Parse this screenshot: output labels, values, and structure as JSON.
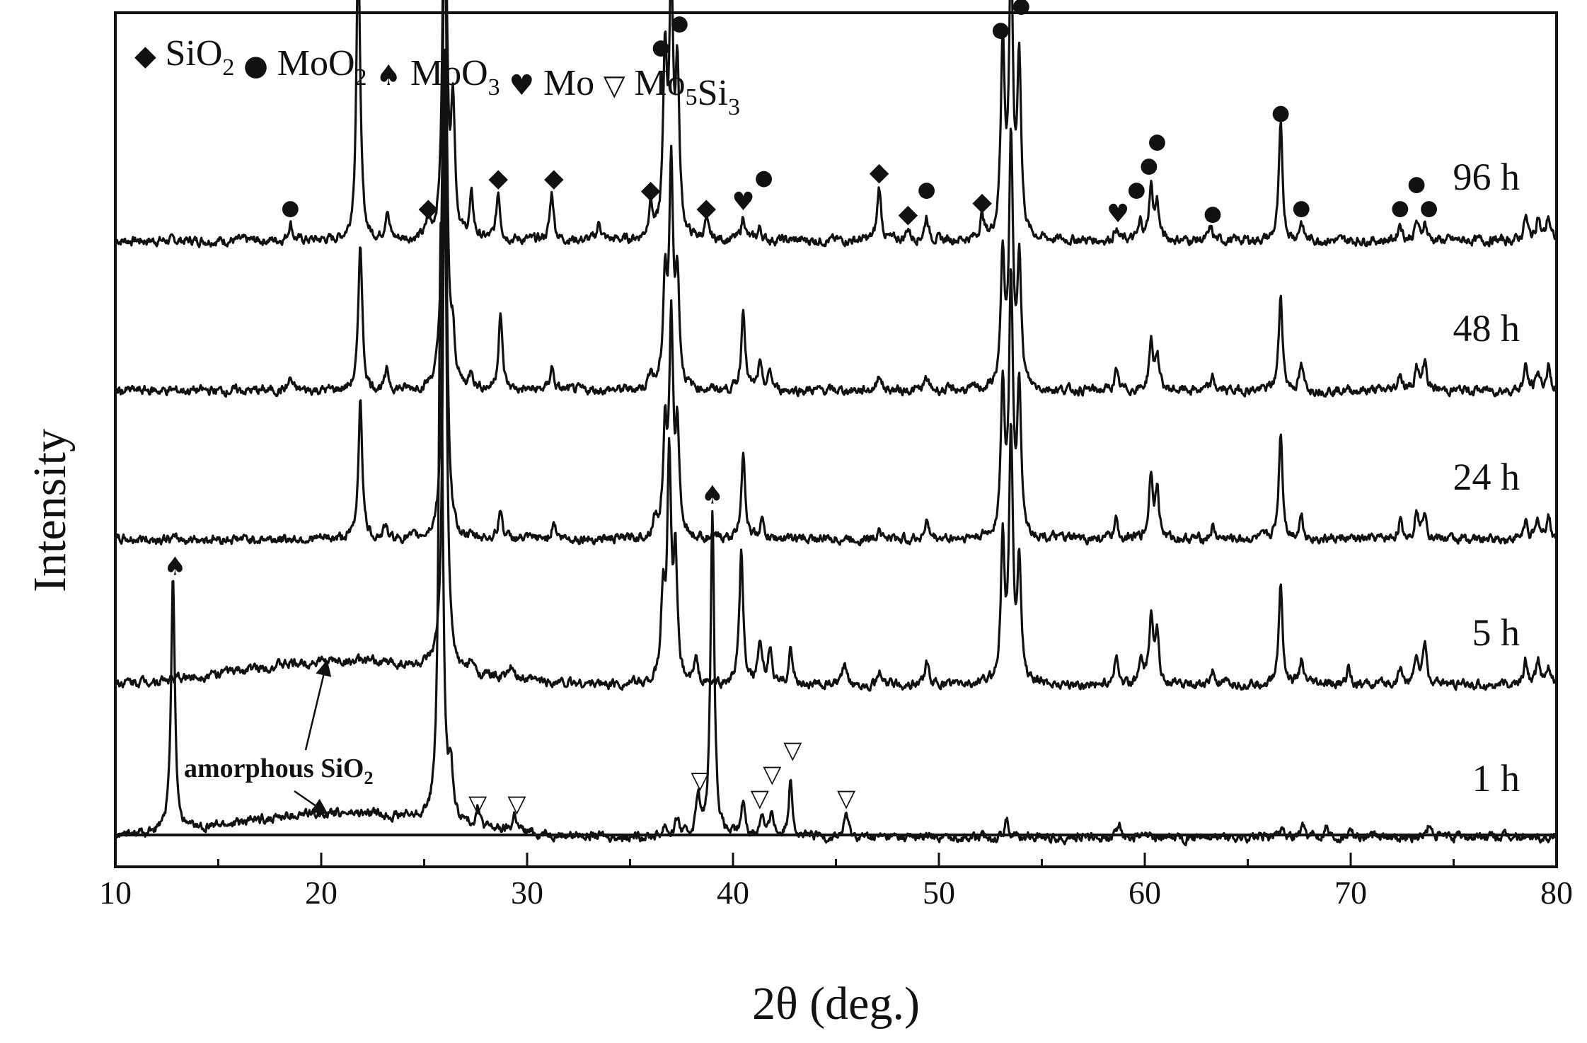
{
  "chart_data": {
    "type": "line",
    "xlabel": "2θ (deg.)",
    "ylabel": "Intensity",
    "xlim": [
      10,
      80
    ],
    "xticks": [
      10,
      20,
      30,
      40,
      50,
      60,
      70,
      80
    ],
    "grid": false,
    "legend": {
      "placement": "top-left",
      "entries": [
        {
          "marker": "diamond",
          "glyph": "◆",
          "main": "SiO",
          "sub": "2"
        },
        {
          "marker": "circle",
          "glyph": "●",
          "main": "MoO",
          "sub": "2"
        },
        {
          "marker": "spade",
          "glyph": "♠",
          "main": "MoO",
          "sub": "3"
        },
        {
          "marker": "heart",
          "glyph": "♥",
          "main": "Mo",
          "sub": ""
        },
        {
          "marker": "triangle",
          "glyph": "▽",
          "main": "Mo",
          "sub": "5",
          "main2": "Si",
          "sub2": "3"
        }
      ]
    },
    "series": [
      {
        "name": "96 h",
        "peaks": [
          [
            18.5,
            0.03
          ],
          [
            21.8,
            0.5
          ],
          [
            23.2,
            0.05
          ],
          [
            25.2,
            0.03
          ],
          [
            26.0,
            0.72
          ],
          [
            26.4,
            0.22
          ],
          [
            27.3,
            0.07
          ],
          [
            28.6,
            0.08
          ],
          [
            31.2,
            0.08
          ],
          [
            33.5,
            0.03
          ],
          [
            36.0,
            0.06
          ],
          [
            36.7,
            0.3
          ],
          [
            37.0,
            0.42
          ],
          [
            37.3,
            0.27
          ],
          [
            38.7,
            0.03
          ],
          [
            40.5,
            0.04
          ],
          [
            41.3,
            0.02
          ],
          [
            47.1,
            0.09
          ],
          [
            48.5,
            0.02
          ],
          [
            49.4,
            0.04
          ],
          [
            52.1,
            0.04
          ],
          [
            53.1,
            0.33
          ],
          [
            53.5,
            0.46
          ],
          [
            53.9,
            0.3
          ],
          [
            58.6,
            0.02
          ],
          [
            59.8,
            0.03
          ],
          [
            60.3,
            0.09
          ],
          [
            60.6,
            0.06
          ],
          [
            63.2,
            0.02
          ],
          [
            66.6,
            0.19
          ],
          [
            67.6,
            0.03
          ],
          [
            72.4,
            0.03
          ],
          [
            73.2,
            0.03
          ],
          [
            73.6,
            0.03
          ],
          [
            78.5,
            0.04
          ],
          [
            79.1,
            0.04
          ],
          [
            79.6,
            0.04
          ]
        ],
        "markers": [
          {
            "x": 18.5,
            "m": "circle"
          },
          {
            "x": 21.8,
            "m": "diamond"
          },
          {
            "x": 25.2,
            "m": "diamond"
          },
          {
            "x": 26.0,
            "m": "circle"
          },
          {
            "x": 28.6,
            "m": "diamond"
          },
          {
            "x": 31.3,
            "m": "diamond"
          },
          {
            "x": 36.0,
            "m": "diamond"
          },
          {
            "x": 36.5,
            "m": "circle"
          },
          {
            "x": 36.9,
            "m": "circle"
          },
          {
            "x": 37.4,
            "m": "circle"
          },
          {
            "x": 38.7,
            "m": "diamond"
          },
          {
            "x": 40.5,
            "m": "heart"
          },
          {
            "x": 41.5,
            "m": "circle"
          },
          {
            "x": 47.1,
            "m": "diamond"
          },
          {
            "x": 48.5,
            "m": "diamond"
          },
          {
            "x": 49.4,
            "m": "circle"
          },
          {
            "x": 52.1,
            "m": "diamond"
          },
          {
            "x": 53.0,
            "m": "circle"
          },
          {
            "x": 53.5,
            "m": "circle"
          },
          {
            "x": 54.0,
            "m": "circle"
          },
          {
            "x": 58.7,
            "m": "heart"
          },
          {
            "x": 59.6,
            "m": "circle"
          },
          {
            "x": 60.2,
            "m": "circle"
          },
          {
            "x": 60.6,
            "m": "circle"
          },
          {
            "x": 63.3,
            "m": "circle"
          },
          {
            "x": 66.6,
            "m": "circle"
          },
          {
            "x": 67.6,
            "m": "circle"
          },
          {
            "x": 72.4,
            "m": "circle"
          },
          {
            "x": 73.2,
            "m": "circle"
          },
          {
            "x": 73.8,
            "m": "circle"
          }
        ]
      },
      {
        "name": "48 h",
        "peaks": [
          [
            18.5,
            0.02
          ],
          [
            21.9,
            0.25
          ],
          [
            23.2,
            0.03
          ],
          [
            26.0,
            0.87
          ],
          [
            26.4,
            0.07
          ],
          [
            27.3,
            0.03
          ],
          [
            28.7,
            0.13
          ],
          [
            31.2,
            0.04
          ],
          [
            36.0,
            0.03
          ],
          [
            36.7,
            0.18
          ],
          [
            37.0,
            0.37
          ],
          [
            37.3,
            0.18
          ],
          [
            40.5,
            0.14
          ],
          [
            41.3,
            0.04
          ],
          [
            41.8,
            0.03
          ],
          [
            47.1,
            0.03
          ],
          [
            49.4,
            0.02
          ],
          [
            53.1,
            0.22
          ],
          [
            53.5,
            0.41
          ],
          [
            53.9,
            0.22
          ],
          [
            58.6,
            0.03
          ],
          [
            60.3,
            0.08
          ],
          [
            60.6,
            0.06
          ],
          [
            63.3,
            0.02
          ],
          [
            66.6,
            0.16
          ],
          [
            67.6,
            0.04
          ],
          [
            72.4,
            0.03
          ],
          [
            73.2,
            0.04
          ],
          [
            73.6,
            0.05
          ],
          [
            78.5,
            0.04
          ],
          [
            79.1,
            0.03
          ],
          [
            79.6,
            0.04
          ]
        ]
      },
      {
        "name": "24 h",
        "peaks": [
          [
            21.9,
            0.24
          ],
          [
            23.1,
            0.02
          ],
          [
            26.0,
            0.83
          ],
          [
            28.7,
            0.05
          ],
          [
            31.3,
            0.03
          ],
          [
            36.2,
            0.03
          ],
          [
            36.7,
            0.18
          ],
          [
            37.0,
            0.35
          ],
          [
            37.3,
            0.17
          ],
          [
            40.5,
            0.15
          ],
          [
            41.4,
            0.03
          ],
          [
            47.1,
            0.02
          ],
          [
            49.4,
            0.03
          ],
          [
            53.1,
            0.25
          ],
          [
            53.5,
            0.42
          ],
          [
            53.9,
            0.25
          ],
          [
            58.6,
            0.03
          ],
          [
            60.3,
            0.11
          ],
          [
            60.6,
            0.08
          ],
          [
            63.3,
            0.02
          ],
          [
            66.6,
            0.18
          ],
          [
            67.6,
            0.04
          ],
          [
            72.4,
            0.03
          ],
          [
            73.2,
            0.05
          ],
          [
            73.6,
            0.05
          ],
          [
            78.5,
            0.03
          ],
          [
            79.1,
            0.03
          ],
          [
            79.6,
            0.04
          ]
        ]
      },
      {
        "name": "5 h",
        "amorphous_hump": {
          "center": 21,
          "height": 0.04,
          "width": 7
        },
        "peaks": [
          [
            26.0,
            0.9
          ],
          [
            27.3,
            0.02
          ],
          [
            29.2,
            0.02
          ],
          [
            36.6,
            0.14
          ],
          [
            36.9,
            0.38
          ],
          [
            37.2,
            0.2
          ],
          [
            38.2,
            0.04
          ],
          [
            40.4,
            0.22
          ],
          [
            41.3,
            0.07
          ],
          [
            41.8,
            0.06
          ],
          [
            42.8,
            0.06
          ],
          [
            45.4,
            0.03
          ],
          [
            47.1,
            0.02
          ],
          [
            49.4,
            0.04
          ],
          [
            53.1,
            0.24
          ],
          [
            53.5,
            0.41
          ],
          [
            53.9,
            0.2
          ],
          [
            58.6,
            0.05
          ],
          [
            59.8,
            0.04
          ],
          [
            60.3,
            0.11
          ],
          [
            60.6,
            0.09
          ],
          [
            63.3,
            0.02
          ],
          [
            66.6,
            0.17
          ],
          [
            67.6,
            0.04
          ],
          [
            69.9,
            0.03
          ],
          [
            72.4,
            0.03
          ],
          [
            73.2,
            0.05
          ],
          [
            73.6,
            0.07
          ],
          [
            78.5,
            0.04
          ],
          [
            79.1,
            0.04
          ],
          [
            79.6,
            0.03
          ]
        ]
      },
      {
        "name": "1 h",
        "amorphous_hump": {
          "center": 21,
          "height": 0.04,
          "width": 7
        },
        "peaks": [
          [
            12.8,
            0.43
          ],
          [
            25.8,
            1.0
          ],
          [
            26.3,
            0.08
          ],
          [
            27.6,
            0.03
          ],
          [
            29.4,
            0.03
          ],
          [
            36.7,
            0.02
          ],
          [
            37.3,
            0.03
          ],
          [
            38.3,
            0.07
          ],
          [
            39.0,
            0.55
          ],
          [
            40.5,
            0.06
          ],
          [
            41.4,
            0.04
          ],
          [
            41.9,
            0.04
          ],
          [
            42.8,
            0.1
          ],
          [
            45.5,
            0.04
          ],
          [
            53.3,
            0.03
          ],
          [
            58.8,
            0.02
          ],
          [
            66.7,
            0.02
          ],
          [
            67.7,
            0.02
          ],
          [
            68.8,
            0.02
          ],
          [
            70.0,
            0.02
          ],
          [
            73.8,
            0.02
          ]
        ],
        "markers": [
          {
            "x": 12.9,
            "m": "spade"
          },
          {
            "x": 39.0,
            "m": "spade"
          },
          {
            "x": 27.6,
            "m": "triangle"
          },
          {
            "x": 29.5,
            "m": "triangle"
          },
          {
            "x": 38.4,
            "m": "triangle"
          },
          {
            "x": 41.3,
            "m": "triangle"
          },
          {
            "x": 41.9,
            "m": "triangle"
          },
          {
            "x": 42.9,
            "m": "triangle"
          },
          {
            "x": 45.5,
            "m": "triangle"
          }
        ]
      }
    ],
    "annotations": [
      {
        "main": "amorphous SiO",
        "sub": "2",
        "arrow_targets": [
          {
            "x": 20,
            "series": "5 h"
          },
          {
            "x": 20,
            "series": "1 h"
          }
        ]
      }
    ]
  }
}
